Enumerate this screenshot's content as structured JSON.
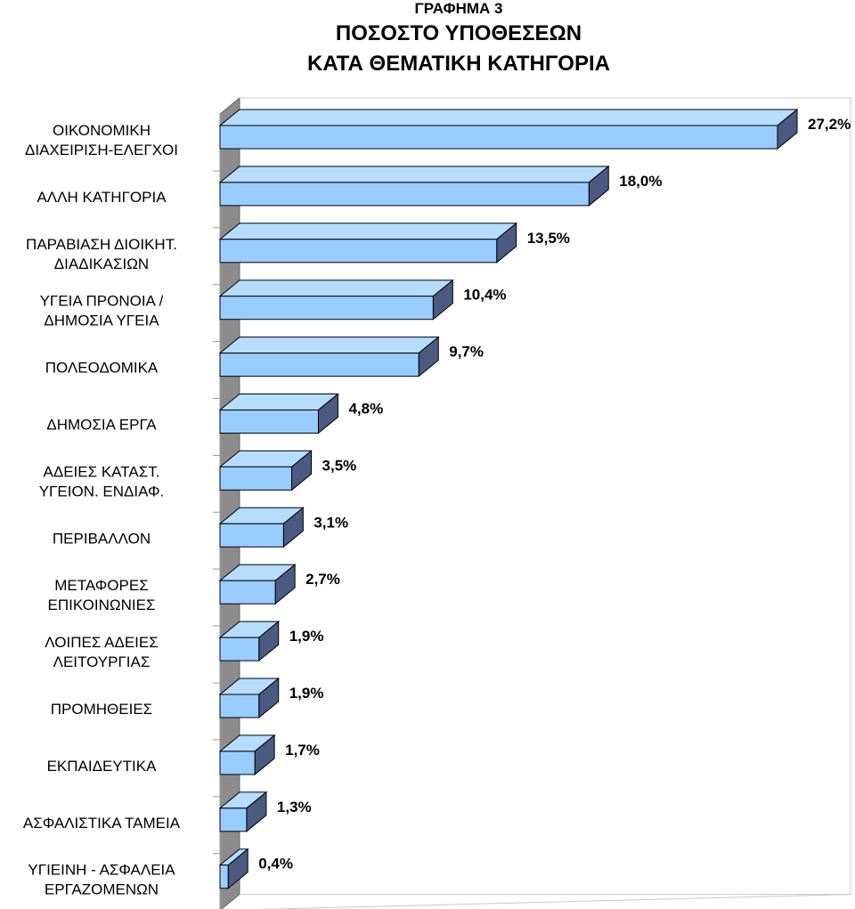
{
  "header": {
    "figure_label": "ΓΡΑΦΗΜΑ 3",
    "title_line1": "ΠΟΣΟΣΤΟ ΥΠΟΘΕΣΕΩΝ",
    "title_line2": "ΚΑΤΑ ΘΕΜΑΤΙΚΗ ΚΑΤΗΓΟΡΙΑ"
  },
  "colors": {
    "bar_front": "#99ccff",
    "bar_top": "#b6dcff",
    "bar_side": "#4a5a80",
    "back_wall": "#8c8c8c",
    "gridline": "#9a9a9a"
  },
  "chart_data": {
    "type": "bar",
    "orientation": "horizontal",
    "three_d": true,
    "title": "ΠΟΣΟΣΤΟ ΥΠΟΘΕΣΕΩΝ ΚΑΤΑ ΘΕΜΑΤΙΚΗ ΚΑΤΗΓΟΡΙΑ",
    "xlabel": "",
    "ylabel": "",
    "xlim": [
      0,
      27.2
    ],
    "grid": false,
    "legend": "none",
    "categories": [
      [
        "ΟΙΚΟΝΟΜΙΚΗ",
        "ΔΙΑΧΕΙΡΙΣΗ-ΕΛΕΓΧΟΙ"
      ],
      [
        "ΑΛΛΗ ΚΑΤΗΓΟΡΙΑ"
      ],
      [
        "ΠΑΡΑΒΙΑΣΗ ΔΙΟΙΚΗΤ.",
        "ΔΙΑΔΙΚΑΣΙΩΝ"
      ],
      [
        "ΥΓΕΙΑ ΠΡΟΝΟΙΑ /",
        "ΔΗΜΟΣΙΑ ΥΓΕΙΑ"
      ],
      [
        "ΠΟΛΕΟΔΟΜΙΚΑ"
      ],
      [
        "ΔΗΜΟΣΙΑ ΕΡΓΑ"
      ],
      [
        "ΑΔΕΙΕΣ ΚΑΤΑΣΤ.",
        "ΥΓΕΙΟΝ. ΕΝΔΙΑΦ."
      ],
      [
        "ΠΕΡΙΒΑΛΛΟΝ"
      ],
      [
        "ΜΕΤΑΦΟΡΕΣ",
        "ΕΠΙΚΟΙΝΩΝΙΕΣ"
      ],
      [
        "ΛΟΙΠΕΣ ΑΔΕΙΕΣ",
        "ΛΕΙΤΟΥΡΓΙΑΣ"
      ],
      [
        "ΠΡΟΜΗΘΕΙΕΣ"
      ],
      [
        "ΕΚΠΑΙΔΕΥΤΙΚΑ"
      ],
      [
        "ΑΣΦΑΛΙΣΤΙΚΑ ΤΑΜΕΙΑ"
      ],
      [
        "ΥΓΙΕΙΝΗ - ΑΣΦΑΛΕΙΑ",
        "ΕΡΓΑΖΟΜΕΝΩΝ"
      ]
    ],
    "values": [
      27.2,
      18.0,
      13.5,
      10.4,
      9.7,
      4.8,
      3.5,
      3.1,
      2.7,
      1.9,
      1.9,
      1.7,
      1.3,
      0.4
    ],
    "data_labels": [
      "27,2%",
      "18,0%",
      "13,5%",
      "10,4%",
      "9,7%",
      "4,8%",
      "3,5%",
      "3,1%",
      "2,7%",
      "1,9%",
      "1,9%",
      "1,7%",
      "1,3%",
      "0,4%"
    ]
  }
}
